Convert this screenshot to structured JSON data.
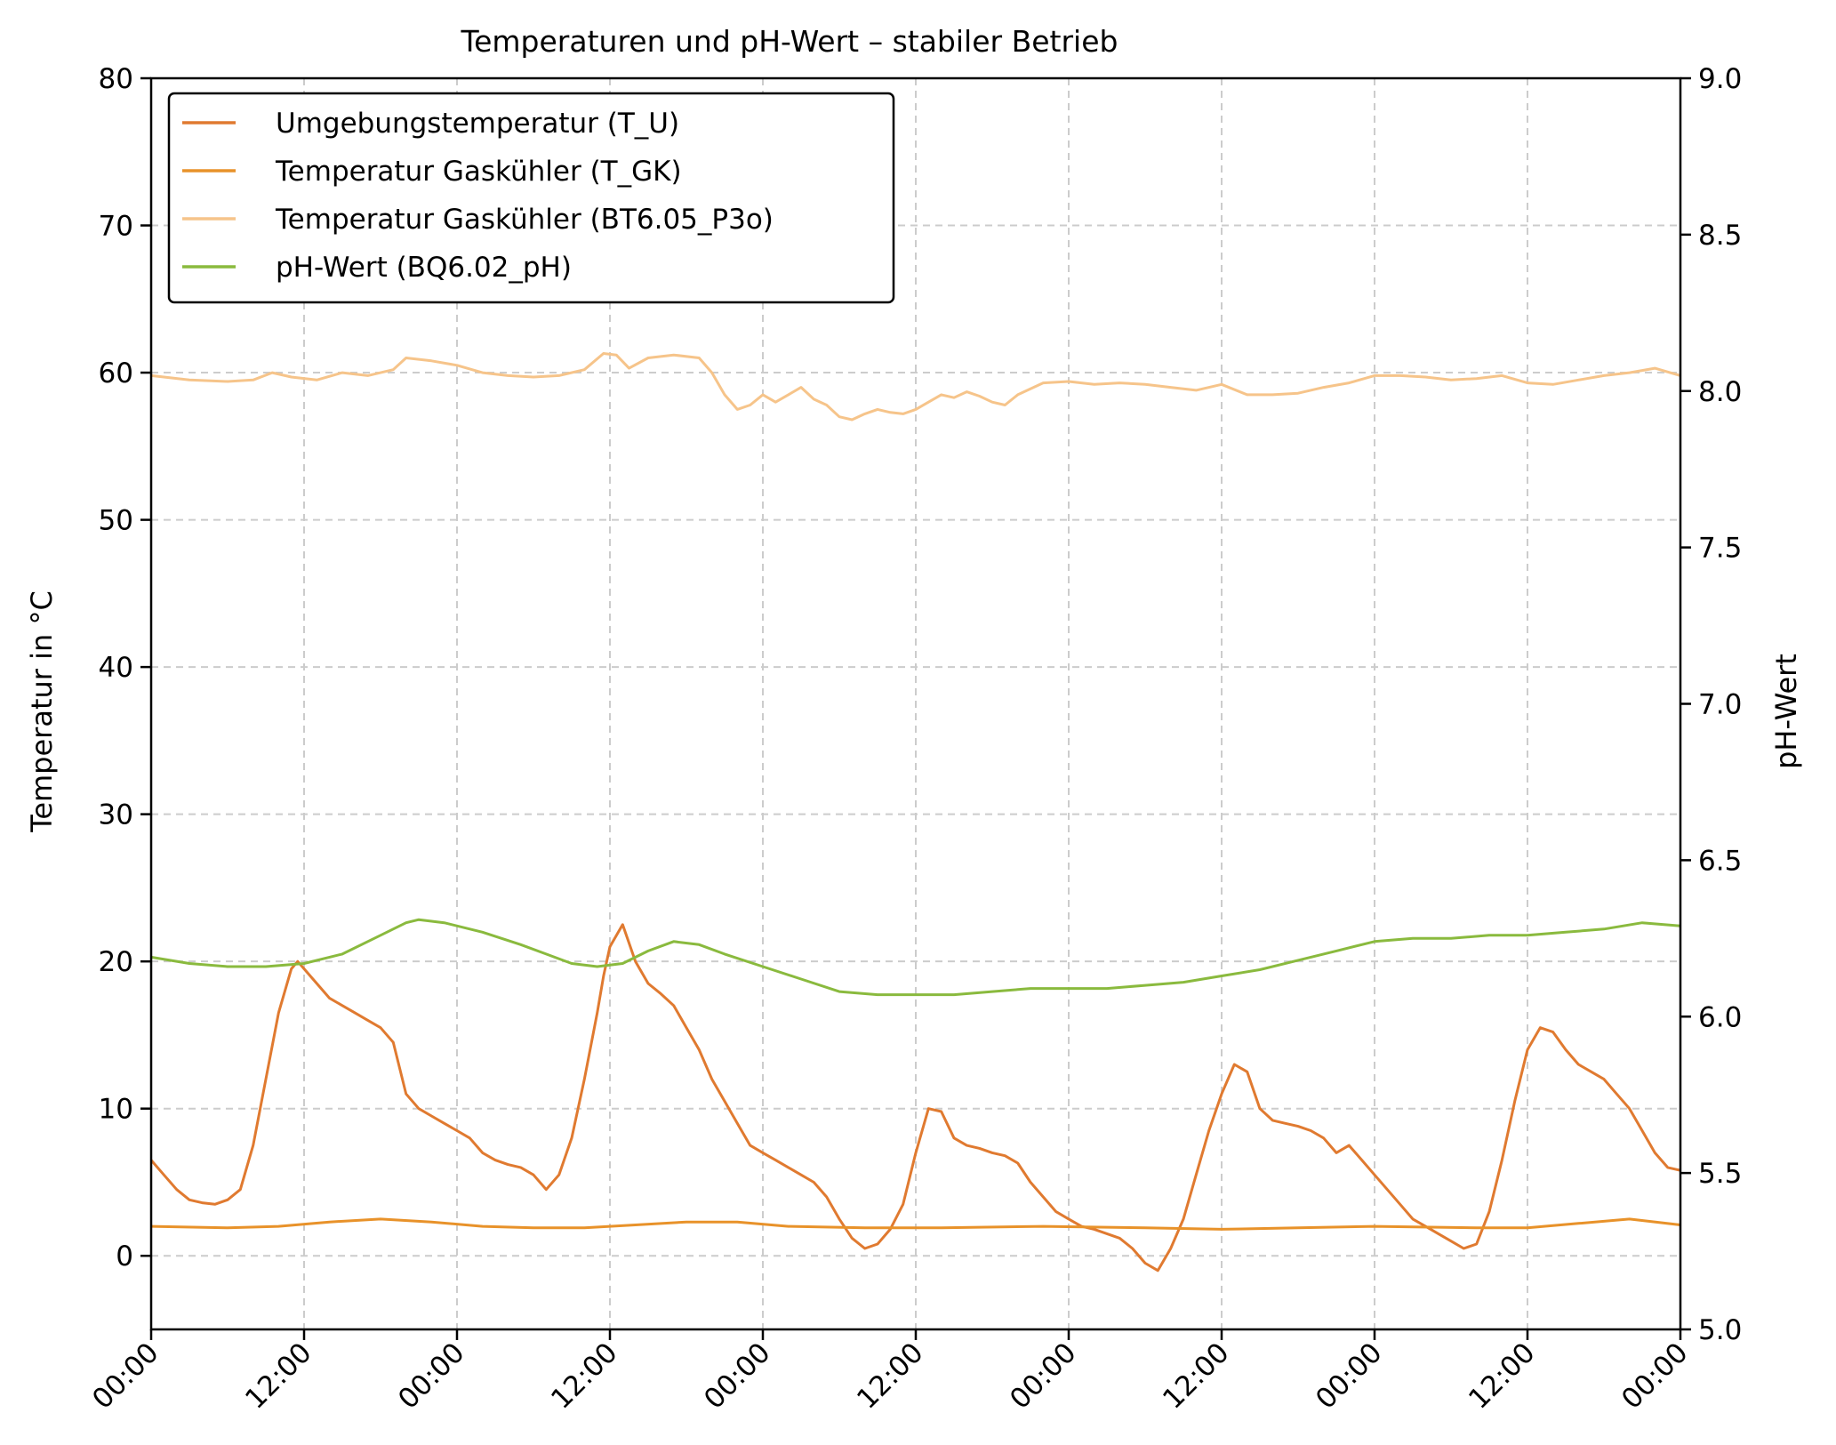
{
  "chart_data": {
    "type": "line",
    "title": "Temperaturen und pH-Wert – stabiler Betrieb",
    "ylabel_left": "Temperatur in °C",
    "ylabel_right": "pH-Wert",
    "x_tick_labels": [
      "00:00",
      "12:00",
      "00:00",
      "12:00",
      "00:00",
      "12:00",
      "00:00",
      "12:00",
      "00:00",
      "12:00",
      "00:00"
    ],
    "x_unit": "hours",
    "xlim": [
      0,
      120
    ],
    "ylim_left": [
      -5,
      80
    ],
    "ylim_right": [
      5.0,
      9.0
    ],
    "yticks_left": [
      "0",
      "10",
      "20",
      "30",
      "40",
      "50",
      "60",
      "70",
      "80"
    ],
    "yticks_right": [
      "5.0",
      "5.5",
      "6.0",
      "6.5",
      "7.0",
      "7.5",
      "8.0",
      "8.5",
      "9.0"
    ],
    "grid": true,
    "legend_position": "top-left",
    "series": [
      {
        "name": "Umgebungstemperatur (T_U)",
        "axis": "left",
        "color": "#e07a30",
        "x": [
          0,
          1,
          2,
          3,
          4,
          5,
          6,
          7,
          8,
          9,
          10,
          11,
          11.5,
          12,
          13,
          14,
          15,
          16,
          17,
          18,
          19,
          20,
          21,
          22,
          23,
          24,
          25,
          26,
          27,
          28,
          29,
          30,
          31,
          32,
          33,
          34,
          35,
          35.5,
          36,
          37,
          38,
          39,
          40,
          41,
          42,
          43,
          44,
          45,
          46,
          47,
          48,
          49,
          50,
          51,
          52,
          53,
          54,
          55,
          56,
          57,
          58,
          59,
          60,
          61,
          62,
          63,
          64,
          65,
          66,
          67,
          68,
          69,
          70,
          71,
          72,
          73,
          74,
          75,
          76,
          77,
          78,
          79,
          80,
          81,
          82,
          83,
          84,
          85,
          86,
          87,
          88,
          89,
          90,
          91,
          92,
          93,
          94,
          95,
          96,
          97,
          98,
          99,
          100,
          101,
          102,
          103,
          104,
          105,
          106,
          107,
          108,
          109,
          110,
          111,
          112,
          113,
          114,
          115,
          116,
          117,
          118,
          119,
          120
        ],
        "values": [
          6.5,
          5.5,
          4.5,
          3.8,
          3.6,
          3.5,
          3.8,
          4.5,
          7.5,
          12,
          16.5,
          19.5,
          20,
          19.5,
          18.5,
          17.5,
          17,
          16.5,
          16,
          15.5,
          14.5,
          11,
          10,
          9.5,
          9,
          8.5,
          8,
          7,
          6.5,
          6.2,
          6,
          5.5,
          4.5,
          5.5,
          8,
          12,
          16.5,
          19,
          21,
          22.5,
          20,
          18.5,
          17.8,
          17,
          15.5,
          14,
          12,
          10.5,
          9,
          7.5,
          7,
          6.5,
          6,
          5.5,
          5,
          4,
          2.5,
          1.2,
          0.5,
          0.8,
          1.8,
          3.5,
          7,
          10,
          9.8,
          8,
          7.5,
          7.3,
          7,
          6.8,
          6.3,
          5,
          4,
          3,
          2.5,
          2,
          1.8,
          1.5,
          1.2,
          0.5,
          -0.5,
          -1,
          0.5,
          2.5,
          5.5,
          8.5,
          11,
          13,
          12.5,
          10,
          9.2,
          9,
          8.8,
          8.5,
          8,
          7,
          7.5,
          6.5,
          5.5,
          4.5,
          3.5,
          2.5,
          2,
          1.5,
          1,
          0.5,
          0.8,
          3,
          6.5,
          10.5,
          14,
          15.5,
          15.2,
          14,
          13,
          12.5,
          12,
          11,
          10,
          8.5,
          7,
          6,
          5.8
        ]
      },
      {
        "name": "Temperatur Gaskühler (T_GK)",
        "axis": "left",
        "color": "#e8922a",
        "x": [
          0,
          6,
          10,
          14,
          18,
          22,
          26,
          30,
          34,
          38,
          42,
          46,
          50,
          56,
          62,
          70,
          78,
          84,
          90,
          96,
          104,
          108,
          112,
          116,
          120
        ],
        "values": [
          2.0,
          1.9,
          2.0,
          2.3,
          2.5,
          2.3,
          2.0,
          1.9,
          1.9,
          2.1,
          2.3,
          2.3,
          2.0,
          1.9,
          1.9,
          2.0,
          1.9,
          1.8,
          1.9,
          2.0,
          1.9,
          1.9,
          2.2,
          2.5,
          2.1
        ]
      },
      {
        "name": "Temperatur Gaskühler (BT6.05_P3o)",
        "axis": "left",
        "color": "#f6c48a",
        "x": [
          0,
          3,
          6,
          8,
          9.5,
          11,
          13,
          15,
          17,
          19,
          20,
          22,
          24,
          26,
          28,
          30,
          32,
          34,
          35.5,
          36.5,
          37.5,
          39,
          41,
          43,
          44,
          45,
          46,
          47,
          48,
          49,
          50,
          51,
          52,
          53,
          54,
          55,
          56,
          57,
          58,
          59,
          60,
          61,
          62,
          63,
          64,
          65,
          66,
          67,
          68,
          70,
          72,
          74,
          76,
          78,
          80,
          82,
          84,
          86,
          88,
          90,
          92,
          94,
          96,
          98,
          100,
          102,
          104,
          106,
          108,
          110,
          112,
          114,
          116,
          118,
          120
        ],
        "values": [
          59.8,
          59.5,
          59.4,
          59.5,
          60,
          59.7,
          59.5,
          60,
          59.8,
          60.2,
          61,
          60.8,
          60.5,
          60,
          59.8,
          59.7,
          59.8,
          60.2,
          61.3,
          61.2,
          60.3,
          61,
          61.2,
          61,
          60,
          58.5,
          57.5,
          57.8,
          58.5,
          58,
          58.5,
          59,
          58.2,
          57.8,
          57,
          56.8,
          57.2,
          57.5,
          57.3,
          57.2,
          57.5,
          58,
          58.5,
          58.3,
          58.7,
          58.4,
          58,
          57.8,
          58.5,
          59.3,
          59.4,
          59.2,
          59.3,
          59.2,
          59,
          58.8,
          59.2,
          58.5,
          58.5,
          58.6,
          59,
          59.3,
          59.8,
          59.8,
          59.7,
          59.5,
          59.6,
          59.8,
          59.3,
          59.2,
          59.5,
          59.8,
          60,
          60.3,
          59.8
        ]
      },
      {
        "name": "pH-Wert (BQ6.02_pH)",
        "axis": "right",
        "color": "#8aba3e",
        "x": [
          0,
          3,
          6,
          9,
          12,
          15,
          18,
          20,
          21,
          23,
          26,
          29,
          31,
          33,
          35,
          37,
          39,
          41,
          43,
          45,
          48,
          51,
          54,
          57,
          60,
          63,
          66,
          69,
          72,
          75,
          78,
          81,
          84,
          87,
          90,
          93,
          96,
          99,
          102,
          105,
          108,
          111,
          114,
          117,
          120
        ],
        "values": [
          6.19,
          6.17,
          6.16,
          6.16,
          6.17,
          6.2,
          6.26,
          6.3,
          6.31,
          6.3,
          6.27,
          6.23,
          6.2,
          6.17,
          6.16,
          6.17,
          6.21,
          6.24,
          6.23,
          6.2,
          6.16,
          6.12,
          6.08,
          6.07,
          6.07,
          6.07,
          6.08,
          6.09,
          6.09,
          6.09,
          6.1,
          6.11,
          6.13,
          6.15,
          6.18,
          6.21,
          6.24,
          6.25,
          6.25,
          6.26,
          6.26,
          6.27,
          6.28,
          6.3,
          6.29
        ]
      }
    ]
  }
}
